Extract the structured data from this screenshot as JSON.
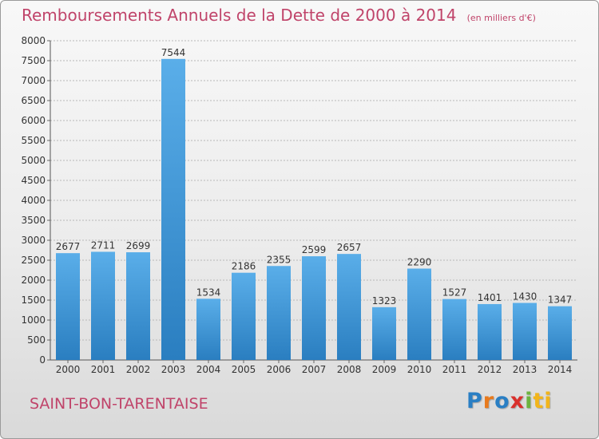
{
  "title": "Remboursements Annuels de la Dette de 2000 à 2014",
  "unit_note": "(en milliers d'€)",
  "commune": "SAINT-BON-TARENTAISE",
  "logo": {
    "letters": [
      "P",
      "r",
      "o",
      "x",
      "i",
      "ti"
    ],
    "colors": [
      "#2a7fc4",
      "#e87a1d",
      "#2a7fc4",
      "#d9302c",
      "#6cb33f",
      "#f2b51b"
    ]
  },
  "colors": {
    "title": "#c0446a",
    "bar_top": "#5aaee9",
    "bar_bottom": "#2a7ec0",
    "grid": "#b8b8b8",
    "axis_text": "#333333"
  },
  "chart_data": {
    "type": "bar",
    "title": "Remboursements Annuels de la Dette de 2000 à 2014",
    "xlabel": "",
    "ylabel": "",
    "ylim": [
      0,
      8000
    ],
    "yticks": [
      0,
      500,
      1000,
      1500,
      2000,
      2500,
      3000,
      3500,
      4000,
      4500,
      5000,
      5500,
      6000,
      6500,
      7000,
      7500,
      8000
    ],
    "grid": true,
    "categories": [
      "2000",
      "2001",
      "2002",
      "2003",
      "2004",
      "2005",
      "2006",
      "2007",
      "2008",
      "2009",
      "2010",
      "2011",
      "2012",
      "2013",
      "2014"
    ],
    "values": [
      2677,
      2711,
      2699,
      7544,
      1534,
      2186,
      2355,
      2599,
      2657,
      1323,
      2290,
      1527,
      1401,
      1430,
      1347
    ]
  }
}
